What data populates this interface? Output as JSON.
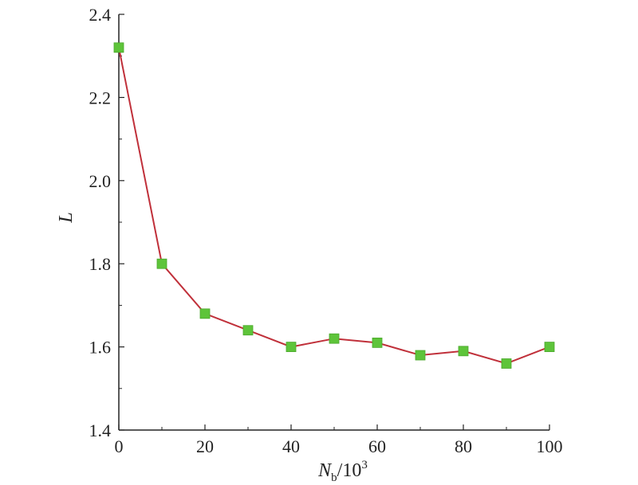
{
  "chart_data": {
    "type": "line",
    "x": [
      0,
      10,
      20,
      30,
      40,
      50,
      60,
      70,
      80,
      90,
      100
    ],
    "series": [
      {
        "values": [
          2.32,
          1.8,
          1.68,
          1.64,
          1.6,
          1.62,
          1.61,
          1.58,
          1.59,
          1.56,
          1.6
        ],
        "line_color": "#c0303a",
        "marker_color": "#5ec43a",
        "marker": "square"
      }
    ],
    "xlim": [
      0,
      100
    ],
    "ylim": [
      1.4,
      2.4
    ],
    "xticks": [
      0,
      20,
      40,
      60,
      80,
      100
    ],
    "yticks": [
      1.4,
      1.6,
      1.8,
      2.0,
      2.2,
      2.4
    ],
    "xtick_labels": [
      "0",
      "20",
      "40",
      "60",
      "80",
      "100"
    ],
    "ytick_labels": [
      "1.4",
      "1.6",
      "1.8",
      "2.0",
      "2.2",
      "2.4"
    ],
    "xlabel": {
      "main": "N",
      "sub": "b",
      "rest": "/10",
      "sup": "3"
    },
    "ylabel": "L",
    "grid": false
  }
}
